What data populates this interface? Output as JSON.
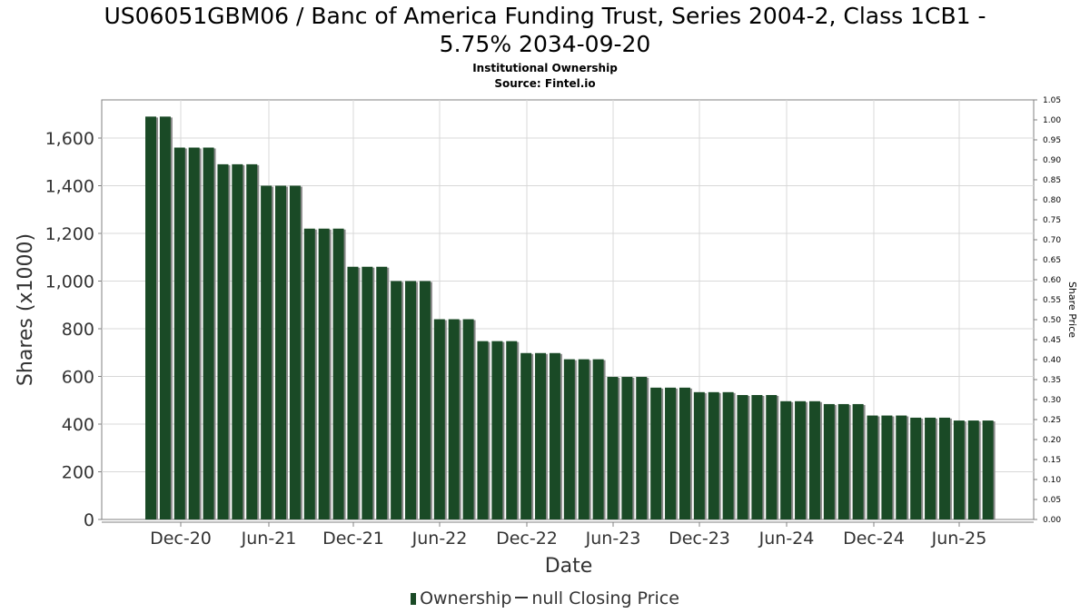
{
  "header": {
    "title_line1": "US06051GBM06 / Banc of America Funding Trust, Series 2004-2, Class 1CB1 -",
    "title_line2": "5.75% 2034-09-20",
    "subtitle": "Institutional Ownership",
    "source": "Source: Fintel.io"
  },
  "legend": {
    "ownership_label": "Ownership",
    "price_label": "null Closing Price"
  },
  "colors": {
    "bar": "#1a4a26",
    "bar_shadow": "#8a8a8a",
    "grid": "#d8d8d8",
    "axis": "#808080"
  },
  "chart_data": {
    "type": "bar",
    "xlabel": "Date",
    "ylabel": "Shares (x1000)",
    "y2label": "Share Price",
    "ylim": [
      0,
      1760
    ],
    "y2lim": [
      0,
      1.05
    ],
    "yticks": [
      0,
      200,
      400,
      600,
      800,
      1000,
      1200,
      1400,
      1600
    ],
    "yticklabels": [
      "0",
      "200",
      "400",
      "600",
      "800",
      "1,000",
      "1,200",
      "1,400",
      "1,600"
    ],
    "y2ticks": [
      "0.00",
      "0.05",
      "0.10",
      "0.15",
      "0.20",
      "0.25",
      "0.30",
      "0.35",
      "0.40",
      "0.45",
      "0.50",
      "0.55",
      "0.60",
      "0.65",
      "0.70",
      "0.75",
      "0.80",
      "0.85",
      "0.90",
      "0.95",
      "1.00",
      "1.05"
    ],
    "xticklabels": [
      "Dec-20",
      "Jun-21",
      "Dec-21",
      "Jun-22",
      "Dec-22",
      "Jun-23",
      "Dec-23",
      "Jun-24",
      "Dec-24",
      "Jun-25"
    ],
    "grid": true,
    "legend_position": "bottom",
    "series": [
      {
        "name": "Ownership",
        "values": [
          1690,
          1690,
          1560,
          1560,
          1560,
          1490,
          1490,
          1490,
          1400,
          1400,
          1400,
          1220,
          1220,
          1220,
          1060,
          1060,
          1060,
          1000,
          1000,
          1000,
          840,
          840,
          840,
          748,
          748,
          748,
          698,
          698,
          698,
          672,
          672,
          672,
          598,
          598,
          598,
          553,
          553,
          553,
          534,
          534,
          534,
          522,
          522,
          522,
          496,
          496,
          496,
          484,
          484,
          484,
          436,
          436,
          436,
          427,
          427,
          427,
          415,
          415,
          415
        ]
      }
    ]
  }
}
